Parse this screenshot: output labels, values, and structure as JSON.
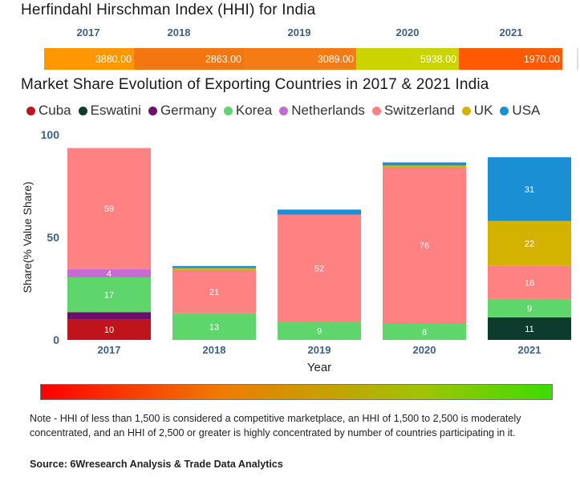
{
  "hhi": {
    "title": "Herfindahl Hirschman Index (HHI) for India",
    "years": [
      "2017",
      "2018",
      "2019",
      "2020",
      "2021"
    ],
    "values": [
      "3880.00",
      "2863.00",
      "3089.00",
      "5938.00",
      "1970.00"
    ],
    "colors": [
      "#ff9800",
      "#f47610",
      "#f57c14",
      "#ccd400",
      "#ff5a00"
    ]
  },
  "chart_data": {
    "type": "bar",
    "stacked": true,
    "title": "Market Share Evolution of Exporting Countries in 2017 & 2021 India",
    "xlabel": "Year",
    "ylabel": "Share(% Value Share)",
    "ylim": [
      0,
      100
    ],
    "yticks": [
      0,
      50,
      100
    ],
    "legend_position": "top",
    "categories": [
      "2017",
      "2018",
      "2019",
      "2020",
      "2021"
    ],
    "series": [
      {
        "name": "Cuba",
        "color": "#c0141c",
        "values": [
          10,
          0,
          0,
          0,
          0
        ],
        "labels": [
          "10",
          "",
          "",
          "",
          ""
        ]
      },
      {
        "name": "Eswatini",
        "color": "#0d3b2e",
        "values": [
          0,
          0,
          0,
          0,
          11
        ],
        "labels": [
          "",
          "",
          "",
          "",
          "11"
        ]
      },
      {
        "name": "Germany",
        "color": "#6a0f6a",
        "values": [
          3.5,
          0,
          0,
          0,
          0
        ],
        "labels": [
          "",
          "",
          "",
          "",
          ""
        ]
      },
      {
        "name": "Korea",
        "color": "#5fd66b",
        "values": [
          17,
          13,
          9,
          8,
          9
        ],
        "labels": [
          "17",
          "13",
          "9",
          "8",
          "9"
        ]
      },
      {
        "name": "Netherlands",
        "color": "#c56bd4",
        "values": [
          4,
          0,
          0,
          0,
          0
        ],
        "labels": [
          "4",
          "",
          "",
          "",
          ""
        ]
      },
      {
        "name": "Switzerland",
        "color": "#ff8282",
        "values": [
          59,
          21,
          52,
          76,
          16
        ],
        "labels": [
          "59",
          "21",
          "52",
          "76",
          "16"
        ]
      },
      {
        "name": "UK",
        "color": "#d4b200",
        "values": [
          0,
          1,
          0,
          1,
          22
        ],
        "labels": [
          "",
          "",
          "",
          "",
          "22"
        ]
      },
      {
        "name": "USA",
        "color": "#1a8fd4",
        "values": [
          0,
          1,
          2.5,
          1.5,
          31
        ],
        "labels": [
          "",
          "",
          "",
          "",
          "31"
        ]
      }
    ]
  },
  "note": "Note - HHI of less than 1,500 is considered a competitive marketplace, an HHI of 1,500 to 2,500 is moderately concentrated, and an HHI of 2,500 or greater is highly concentrated by number of countries participating in it.",
  "source": "Source: 6Wresearch Analysis & Trade Data Analytics"
}
